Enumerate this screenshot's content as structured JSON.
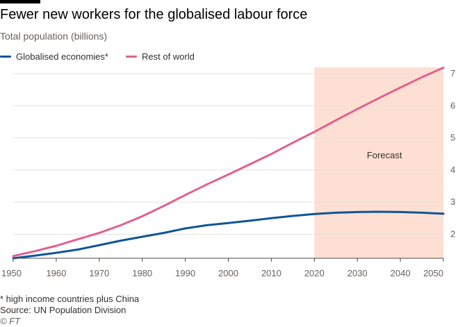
{
  "header": {
    "title": "Fewer new workers for the globalised labour force",
    "subtitle": "Total population (billions)"
  },
  "legend": [
    {
      "label": "Globalised economies*",
      "color": "#0f5499"
    },
    {
      "label": "Rest of world",
      "color": "#e25f90"
    }
  ],
  "chart_data": {
    "type": "line",
    "title": "Fewer new workers for the globalised labour force",
    "ylabel": "Total population (billions)",
    "xlabel": "",
    "xlim": [
      1950,
      2050
    ],
    "ylim": [
      1.25,
      7.2
    ],
    "x_ticks": [
      1950,
      1960,
      1970,
      1980,
      1990,
      2000,
      2010,
      2020,
      2030,
      2040,
      2050
    ],
    "x_tick_labels": [
      "1950",
      "1960",
      "1970",
      "1980",
      "1990",
      "2000",
      "2010",
      "2020",
      "2030",
      "2040",
      "2050"
    ],
    "y_ticks": [
      2,
      3,
      4,
      5,
      6,
      7
    ],
    "y_tick_labels": [
      "2",
      "3",
      "4",
      "5",
      "6",
      "7"
    ],
    "grid": true,
    "legend_position": "top-left",
    "x": [
      1950,
      1955,
      1960,
      1965,
      1970,
      1975,
      1980,
      1985,
      1990,
      1995,
      2000,
      2005,
      2010,
      2015,
      2020,
      2025,
      2030,
      2035,
      2040,
      2045,
      2050
    ],
    "series": [
      {
        "name": "Globalised economies*",
        "color": "#0f5499",
        "values": [
          1.25,
          1.33,
          1.42,
          1.52,
          1.66,
          1.8,
          1.92,
          2.04,
          2.18,
          2.28,
          2.35,
          2.42,
          2.5,
          2.57,
          2.63,
          2.67,
          2.69,
          2.7,
          2.69,
          2.67,
          2.64
        ]
      },
      {
        "name": "Rest of world",
        "color": "#e25f90",
        "values": [
          1.32,
          1.47,
          1.64,
          1.84,
          2.04,
          2.28,
          2.56,
          2.88,
          3.22,
          3.55,
          3.86,
          4.18,
          4.5,
          4.85,
          5.19,
          5.55,
          5.9,
          6.24,
          6.57,
          6.89,
          7.19
        ]
      }
    ],
    "annotations": [
      {
        "label": "Forecast",
        "x_start": 2020,
        "x_end": 2050,
        "fill": "#fde0d3"
      }
    ]
  },
  "footer": {
    "note": "* high income countries plus China",
    "source": "Source: UN Population Division",
    "copyright": "© FT"
  }
}
